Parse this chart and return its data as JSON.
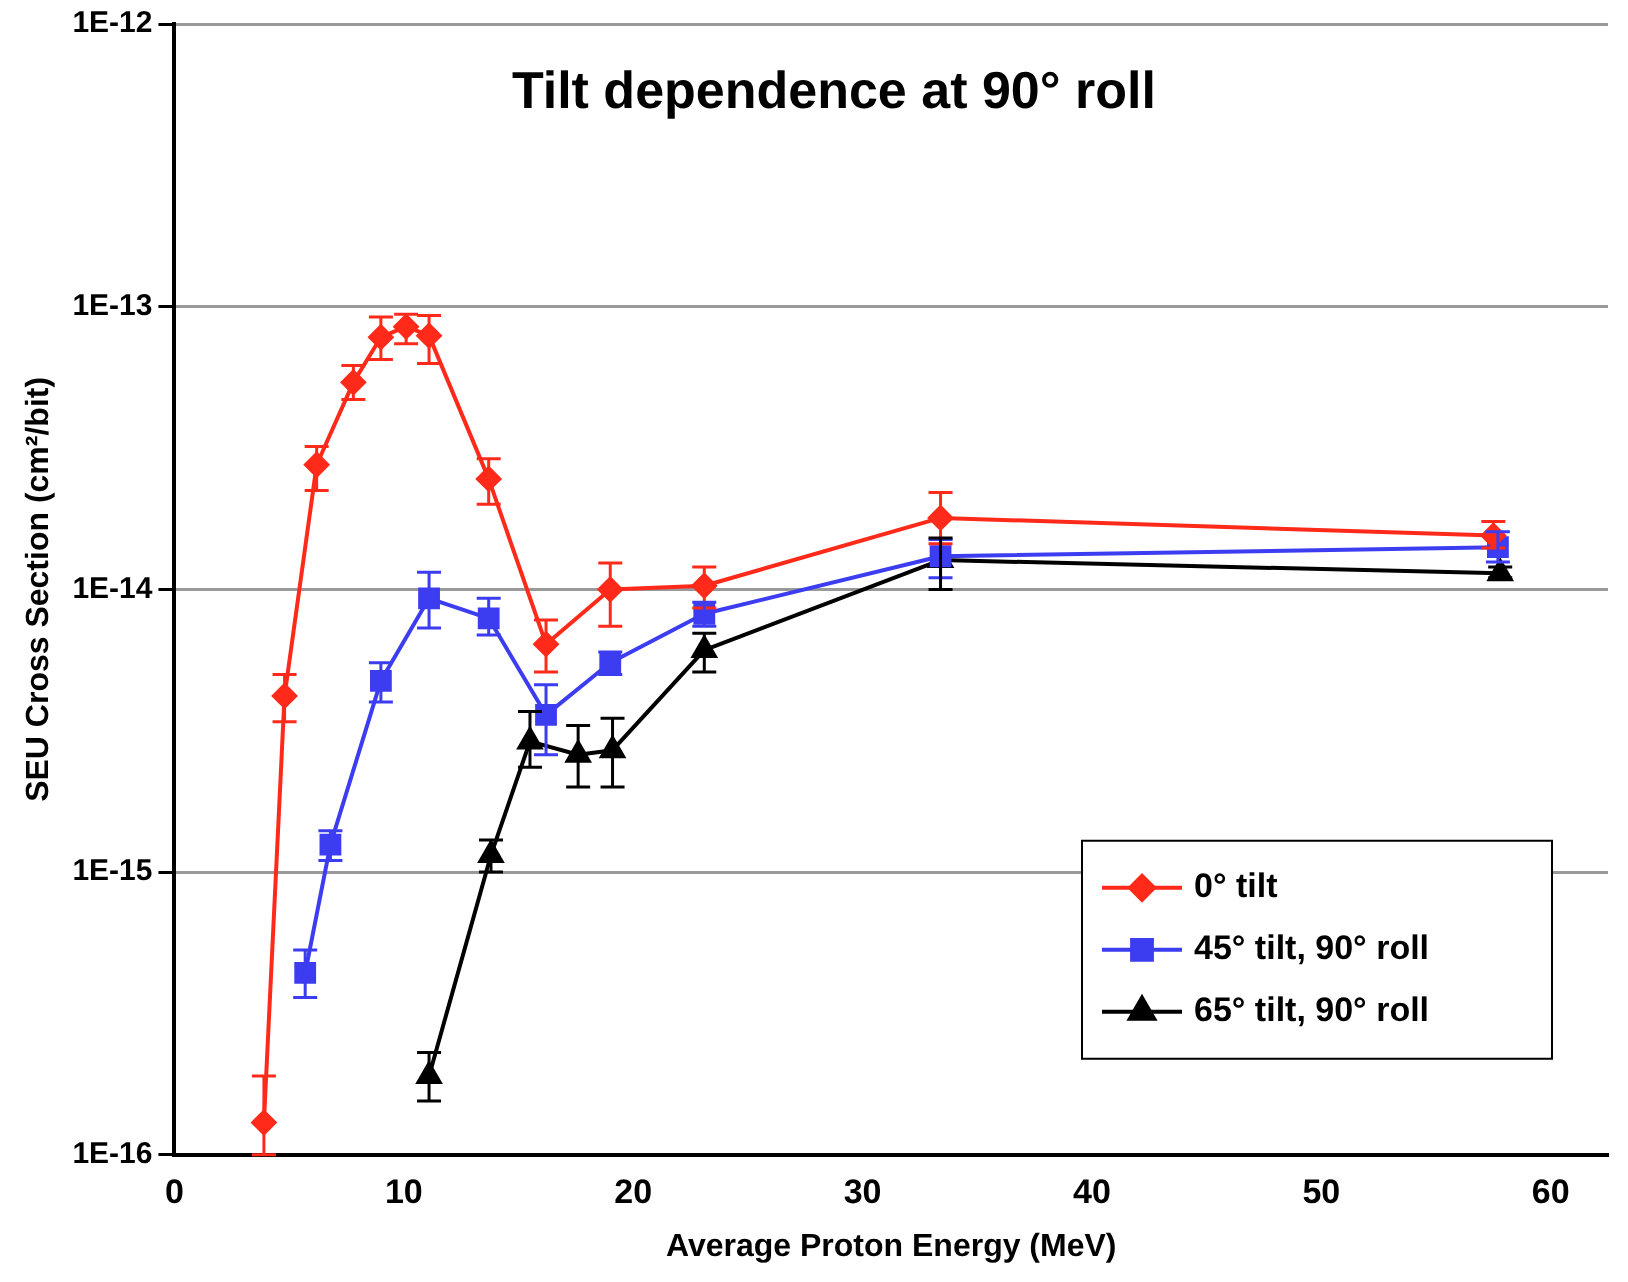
{
  "chart_data": {
    "type": "line",
    "title": "Tilt dependence at 90° roll",
    "xlabel": "Average Proton Energy (MeV)",
    "ylabel": "SEU Cross Section (cm²/bit)",
    "log": "y",
    "grid": "y",
    "legend": "bottom right",
    "line_style": "solid",
    "xlim": [
      0,
      62.5
    ],
    "xticks": [
      0,
      10,
      20,
      30,
      40,
      50,
      60
    ],
    "ylim": [
      1e-16,
      1e-12
    ],
    "yticks": [
      {
        "value": 1e-16,
        "label": "1E-16"
      },
      {
        "value": 1e-15,
        "label": "1E-15"
      },
      {
        "value": 1e-14,
        "label": "1E-14"
      },
      {
        "value": 1e-13,
        "label": "1E-13"
      },
      {
        "value": 1e-12,
        "label": "1E-12"
      }
    ],
    "series": [
      {
        "name": "0° tilt",
        "color": "#ff2a1a",
        "marker": "diamond",
        "x": [
          3.9,
          4.8,
          6.2,
          7.8,
          9.0,
          10.1,
          11.1,
          13.7,
          16.2,
          19.0,
          23.1,
          33.4,
          57.5
        ],
        "values": [
          1.3e-16,
          4.2e-15,
          2.76e-14,
          5.4e-14,
          7.8e-14,
          8.5e-14,
          7.9e-14,
          2.46e-14,
          6.4e-15,
          1e-14,
          1.03e-14,
          1.79e-14,
          1.55e-14
        ],
        "errors": [
          [
            1e-16,
            1.9e-16
          ],
          [
            3.4e-15,
            5e-15
          ],
          [
            2.24e-14,
            3.2e-14
          ],
          [
            4.7e-14,
            6.2e-14
          ],
          [
            6.5e-14,
            9.2e-14
          ],
          [
            7.4e-14,
            9.4e-14
          ],
          [
            6.3e-14,
            9.3e-14
          ],
          [
            2e-14,
            2.9e-14
          ],
          [
            5.1e-15,
            7.8e-15
          ],
          [
            7.4e-15,
            1.24e-14
          ],
          [
            8.6e-15,
            1.2e-14
          ],
          [
            1.45e-14,
            2.2e-14
          ],
          [
            1.4e-14,
            1.74e-14
          ]
        ]
      },
      {
        "name": "45° tilt, 90° roll",
        "color": "#3c3cf0",
        "marker": "square",
        "x": [
          5.7,
          6.8,
          9.0,
          11.1,
          13.7,
          16.2,
          19.0,
          23.1,
          33.4,
          57.7
        ],
        "values": [
          4.4e-16,
          1.25e-15,
          4.75e-15,
          9.3e-15,
          7.9e-15,
          3.6e-15,
          5.5e-15,
          8.2e-15,
          1.31e-14,
          1.41e-14
        ],
        "errors": [
          [
            3.6e-16,
            5.3e-16
          ],
          [
            1.1e-15,
            1.4e-15
          ],
          [
            4e-15,
            5.5e-15
          ],
          [
            7.3e-15,
            1.15e-14
          ],
          [
            6.9e-15,
            9.3e-15
          ],
          [
            2.6e-15,
            4.6e-15
          ],
          [
            5e-15,
            6e-15
          ],
          [
            7.4e-15,
            9e-15
          ],
          [
            1.1e-14,
            1.5e-14
          ],
          [
            1.25e-14,
            1.6e-14
          ]
        ]
      },
      {
        "name": "65° tilt, 90° roll",
        "color": "#000000",
        "marker": "triangle",
        "x": [
          11.1,
          13.8,
          15.5,
          17.6,
          19.1,
          23.1,
          33.4,
          57.8
        ],
        "values": [
          1.9e-16,
          1.15e-15,
          2.9e-15,
          2.6e-15,
          2.7e-15,
          6.1e-15,
          1.27e-14,
          1.14e-14
        ],
        "errors": [
          [
            1.55e-16,
            2.3e-16
          ],
          [
            1e-15,
            1.3e-15
          ],
          [
            2.35e-15,
            3.7e-15
          ],
          [
            2e-15,
            3.3e-15
          ],
          [
            2e-15,
            3.5e-15
          ],
          [
            5.1e-15,
            7e-15
          ],
          [
            1e-14,
            1.52e-14
          ],
          [
            1.1e-14,
            1.2e-14
          ]
        ]
      }
    ]
  }
}
